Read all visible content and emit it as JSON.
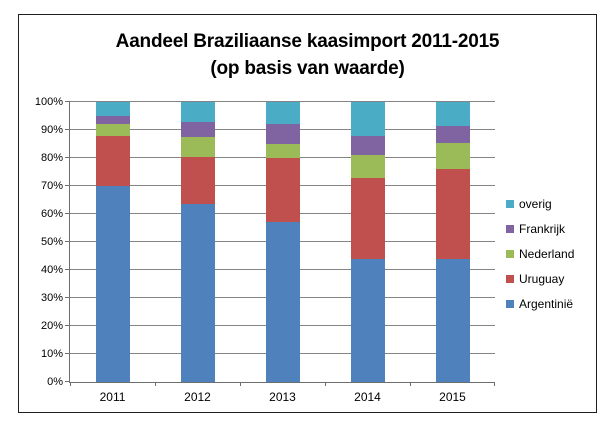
{
  "chart_data": {
    "type": "bar",
    "stacked": true,
    "title": "Aandeel Braziliaanse kaasimport 2011-2015",
    "subtitle": "(op basis van waarde)",
    "categories": [
      "2011",
      "2012",
      "2013",
      "2014",
      "2015"
    ],
    "series": [
      {
        "name": "Argentinië",
        "color": "#4F81BD",
        "values": [
          70,
          63.5,
          57,
          44,
          44
        ]
      },
      {
        "name": "Uruguay",
        "color": "#C0504D",
        "values": [
          18,
          17,
          23,
          29,
          32
        ]
      },
      {
        "name": "Nederland",
        "color": "#9BBB59",
        "values": [
          4,
          7,
          5,
          8,
          9.5
        ]
      },
      {
        "name": "Frankrijk",
        "color": "#8064A2",
        "values": [
          3,
          5.5,
          7,
          7,
          6
        ]
      },
      {
        "name": "overig",
        "color": "#4BACC6",
        "values": [
          5,
          7,
          8,
          12,
          8.5
        ]
      }
    ],
    "legend_order": [
      "overig",
      "Frankrijk",
      "Nederland",
      "Uruguay",
      "Argentinië"
    ],
    "legend_position": "right",
    "y_ticks": [
      "0%",
      "10%",
      "20%",
      "30%",
      "40%",
      "50%",
      "60%",
      "70%",
      "80%",
      "90%",
      "100%"
    ],
    "ylim": [
      0,
      100
    ],
    "xlabel": "",
    "ylabel": "",
    "grid": true
  },
  "colors": {
    "grid": "#848484",
    "axis": "#6E6E6E",
    "frame_border": "#1F1F1F",
    "background": "#FFFFFF",
    "text": "#000000"
  }
}
